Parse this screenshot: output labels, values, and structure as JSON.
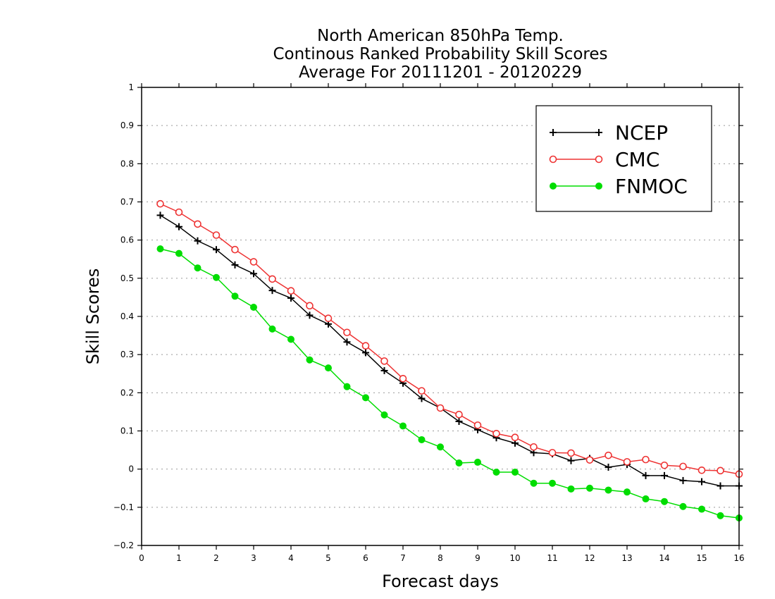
{
  "chart_data": {
    "type": "line",
    "title_lines": [
      "North American 850hPa Temp.",
      "Continous Ranked Probability Skill Scores",
      "Average For 20111201 - 20120229"
    ],
    "xlabel": "Forecast days",
    "ylabel": "Skill Scores",
    "xlim": [
      0,
      16
    ],
    "ylim": [
      -0.2,
      1
    ],
    "x_ticks": [
      "0",
      "1",
      "2",
      "3",
      "4",
      "5",
      "6",
      "7",
      "8",
      "9",
      "10",
      "11",
      "12",
      "13",
      "14",
      "15",
      "16"
    ],
    "y_ticks": [
      "−0.2",
      "−0.1",
      "0",
      "0.1",
      "0.2",
      "0.3",
      "0.4",
      "0.5",
      "0.6",
      "0.7",
      "0.8",
      "0.9",
      "1"
    ],
    "grid": true,
    "legend_position": "top-right",
    "x": [
      0.5,
      1,
      1.5,
      2,
      2.5,
      3,
      3.5,
      4,
      4.5,
      5,
      5.5,
      6,
      6.5,
      7,
      7.5,
      8,
      8.5,
      9,
      9.5,
      10,
      10.5,
      11,
      11.5,
      12,
      12.5,
      13,
      13.5,
      14,
      14.5,
      15,
      15.5,
      16
    ],
    "series": [
      {
        "name": "NCEP",
        "color": "#000000",
        "marker": "plus",
        "values": [
          0.665,
          0.635,
          0.598,
          0.575,
          0.535,
          0.512,
          0.468,
          0.448,
          0.403,
          0.38,
          0.333,
          0.305,
          0.258,
          0.225,
          0.185,
          0.16,
          0.125,
          0.103,
          0.082,
          0.068,
          0.043,
          0.04,
          0.022,
          0.028,
          0.005,
          0.012,
          -0.017,
          -0.017,
          -0.03,
          -0.033,
          -0.044,
          -0.044
        ]
      },
      {
        "name": "CMC",
        "color": "#ee3333",
        "marker": "open-circle",
        "values": [
          0.695,
          0.673,
          0.642,
          0.613,
          0.575,
          0.543,
          0.498,
          0.467,
          0.428,
          0.395,
          0.358,
          0.323,
          0.283,
          0.237,
          0.205,
          0.16,
          0.143,
          0.115,
          0.093,
          0.083,
          0.058,
          0.043,
          0.042,
          0.024,
          0.036,
          0.019,
          0.025,
          0.01,
          0.007,
          -0.003,
          -0.004,
          -0.013
        ]
      },
      {
        "name": "FNMOC",
        "color": "#00dd00",
        "marker": "filled-circle",
        "values": [
          0.577,
          0.565,
          0.527,
          0.502,
          0.453,
          0.424,
          0.367,
          0.34,
          0.286,
          0.265,
          0.216,
          0.187,
          0.142,
          0.113,
          0.077,
          0.058,
          0.016,
          0.018,
          -0.008,
          -0.008,
          -0.037,
          -0.037,
          -0.052,
          -0.05,
          -0.055,
          -0.06,
          -0.078,
          -0.085,
          -0.098,
          -0.105,
          -0.122,
          -0.128
        ]
      }
    ]
  }
}
